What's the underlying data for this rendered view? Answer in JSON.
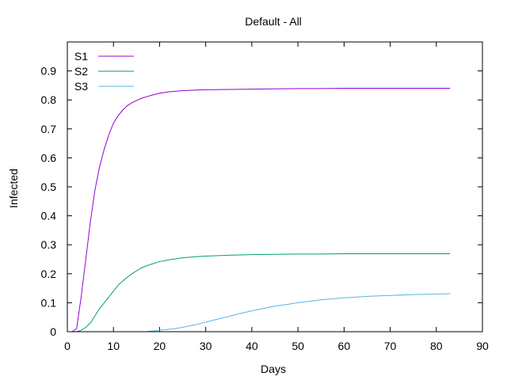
{
  "chart_data": {
    "type": "line",
    "title": "Default - All",
    "xlabel": "Days",
    "ylabel": "Infected",
    "xlim": [
      0,
      90
    ],
    "ylim": [
      0,
      1.0
    ],
    "xticks": [
      0,
      10,
      20,
      30,
      40,
      50,
      60,
      70,
      80,
      90
    ],
    "yticks": [
      0,
      0.1,
      0.2,
      0.3,
      0.4,
      0.5,
      0.6,
      0.7,
      0.8,
      0.9
    ],
    "grid": false,
    "legend_position": "top-left",
    "series": [
      {
        "name": "S1",
        "color": "#9400d3",
        "x": [
          1,
          2,
          3,
          4,
          5,
          6,
          7,
          8,
          9,
          10,
          11,
          12,
          13,
          14,
          15,
          16,
          18,
          20,
          22,
          25,
          28,
          30,
          35,
          40,
          45,
          50,
          55,
          60,
          65,
          70,
          75,
          80,
          83
        ],
        "y": [
          0,
          0.01,
          0.12,
          0.25,
          0.38,
          0.49,
          0.57,
          0.63,
          0.68,
          0.72,
          0.745,
          0.765,
          0.78,
          0.79,
          0.798,
          0.805,
          0.815,
          0.823,
          0.828,
          0.832,
          0.834,
          0.835,
          0.836,
          0.837,
          0.838,
          0.839,
          0.839,
          0.84,
          0.84,
          0.84,
          0.84,
          0.84,
          0.84
        ]
      },
      {
        "name": "S2",
        "color": "#009e73",
        "x": [
          1,
          2,
          3,
          4,
          5,
          6,
          7,
          8,
          9,
          10,
          11,
          12,
          13,
          14,
          15,
          16,
          18,
          20,
          22,
          25,
          28,
          30,
          35,
          40,
          45,
          50,
          55,
          60,
          65,
          70,
          75,
          80,
          83
        ],
        "y": [
          0,
          0,
          0.005,
          0.015,
          0.03,
          0.055,
          0.08,
          0.1,
          0.12,
          0.14,
          0.16,
          0.175,
          0.188,
          0.2,
          0.21,
          0.22,
          0.232,
          0.242,
          0.248,
          0.255,
          0.259,
          0.261,
          0.264,
          0.266,
          0.267,
          0.268,
          0.268,
          0.269,
          0.269,
          0.269,
          0.269,
          0.269,
          0.269
        ]
      },
      {
        "name": "S3",
        "color": "#56b4e9",
        "x": [
          15,
          17,
          20,
          23,
          25,
          28,
          30,
          33,
          35,
          38,
          40,
          43,
          45,
          48,
          50,
          53,
          55,
          58,
          60,
          63,
          65,
          68,
          70,
          73,
          75,
          78,
          80,
          83
        ],
        "y": [
          0,
          0,
          0.005,
          0.01,
          0.015,
          0.025,
          0.033,
          0.045,
          0.053,
          0.065,
          0.072,
          0.082,
          0.088,
          0.095,
          0.1,
          0.106,
          0.11,
          0.114,
          0.117,
          0.12,
          0.122,
          0.124,
          0.125,
          0.127,
          0.128,
          0.129,
          0.13,
          0.131
        ]
      }
    ]
  }
}
